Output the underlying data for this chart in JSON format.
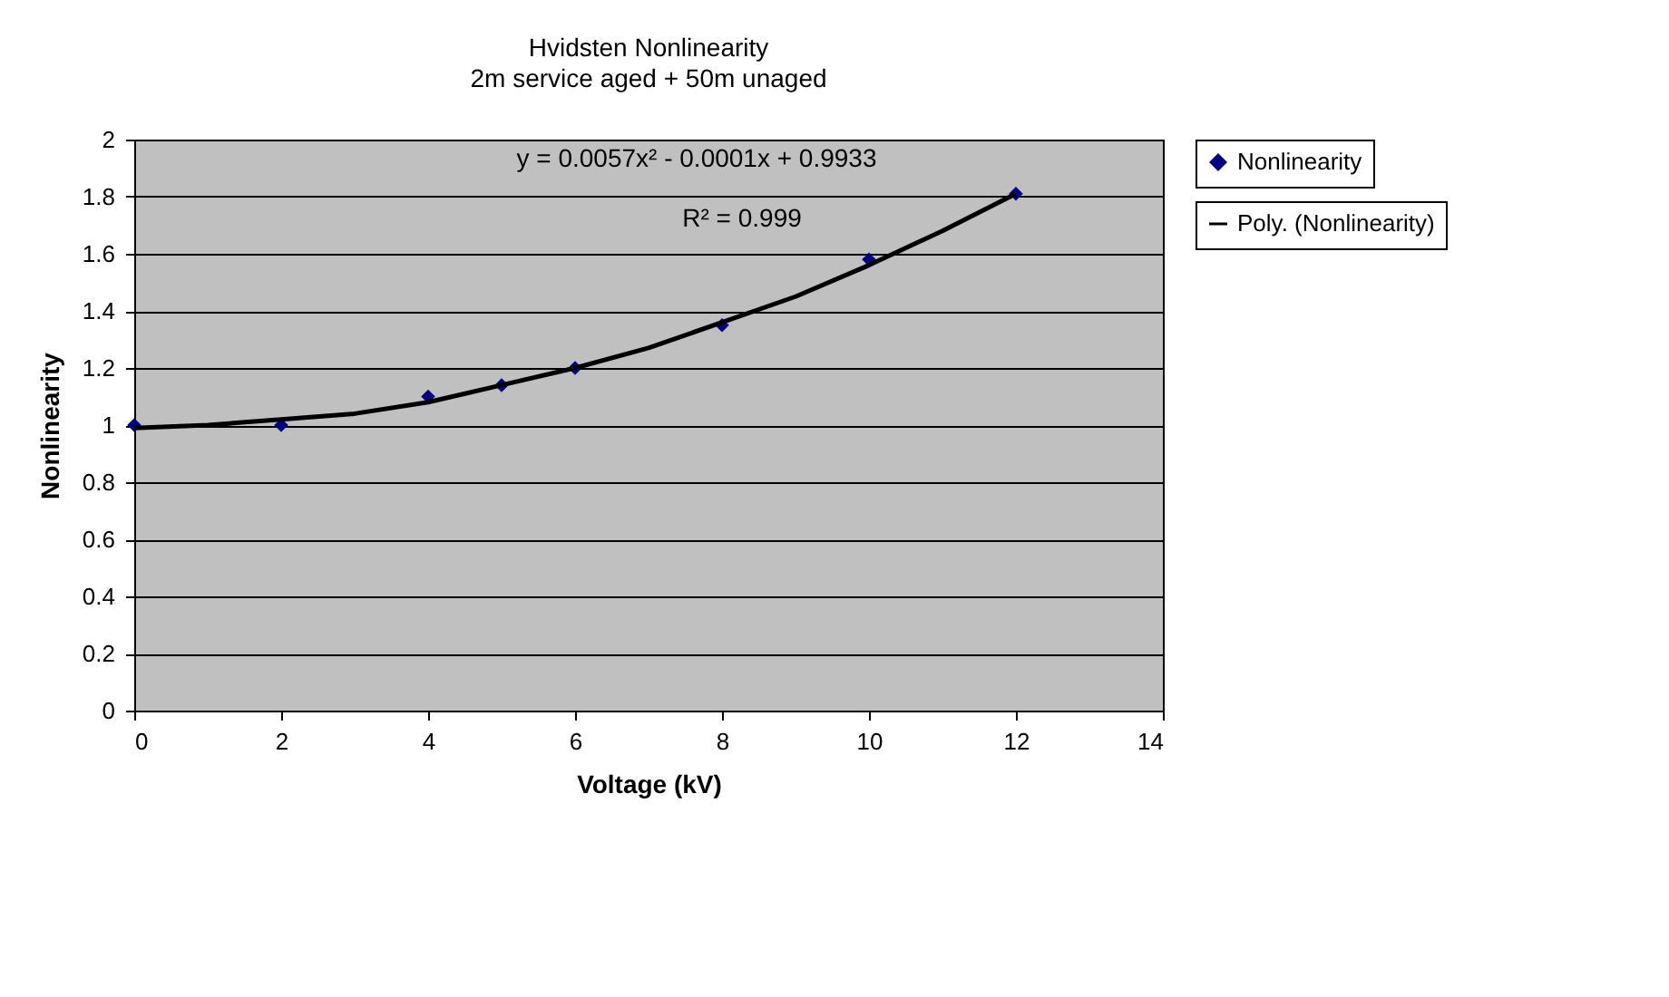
{
  "chart_data": {
    "type": "scatter",
    "title": "Hvidsten Nonlinearity",
    "subtitle": "2m service aged + 50m unaged",
    "xlabel": "Voltage (kV)",
    "ylabel": "Nonlinearity",
    "xlim": [
      0,
      14
    ],
    "xticks": [
      0,
      2,
      4,
      6,
      8,
      10,
      12,
      14
    ],
    "ylim": [
      0,
      2
    ],
    "yticks": [
      0,
      0.2,
      0.4,
      0.6,
      0.8,
      1,
      1.2,
      1.4,
      1.6,
      1.8,
      2
    ],
    "grid": "y",
    "legend": "right",
    "marker": "diamond",
    "series": [
      {
        "name": "Nonlinearity",
        "color": "#000080",
        "x": [
          0,
          2,
          4,
          5,
          6,
          8,
          10,
          12
        ],
        "values": [
          1.0,
          1.0,
          1.1,
          1.14,
          1.2,
          1.35,
          1.58,
          1.81
        ]
      },
      {
        "name": "Poly. (Nonlinearity)",
        "type": "line",
        "color": "#000000",
        "marker": "none",
        "line_style": "solid",
        "x": [
          0,
          1,
          2,
          3,
          4,
          5,
          6,
          7,
          8,
          9,
          10,
          11,
          12
        ],
        "values": [
          0.99,
          1.0,
          1.02,
          1.04,
          1.08,
          1.14,
          1.2,
          1.27,
          1.36,
          1.45,
          1.56,
          1.68,
          1.81
        ]
      }
    ],
    "annotations": [
      "y = 0.0057x² - 0.0001x + 0.9933",
      "R² = 0.999"
    ]
  }
}
